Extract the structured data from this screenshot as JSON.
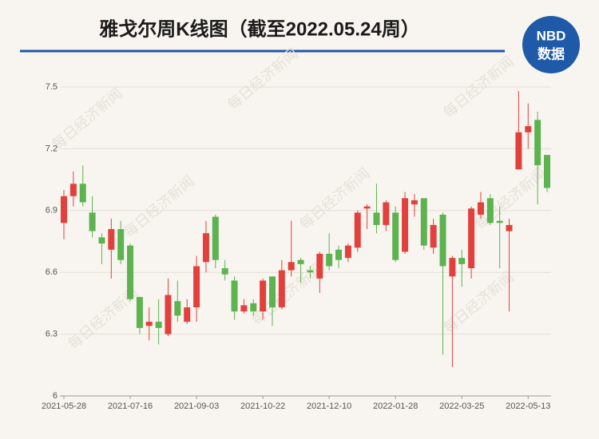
{
  "chart_data": {
    "type": "candlestick",
    "title": "雅戈尔周K线图（截至2022.05.24周）",
    "logo": {
      "top": "NBD",
      "bottom": "数据"
    },
    "watermark": "每日经济新闻",
    "categories": [
      "2021-05-28",
      null,
      null,
      null,
      null,
      null,
      null,
      "2021-07-16",
      null,
      null,
      null,
      null,
      null,
      null,
      "2021-09-03",
      null,
      null,
      null,
      null,
      null,
      null,
      "2021-10-22",
      null,
      null,
      null,
      null,
      null,
      null,
      "2021-12-10",
      null,
      null,
      null,
      null,
      null,
      null,
      "2022-01-28",
      null,
      null,
      null,
      null,
      null,
      null,
      "2022-03-25",
      null,
      null,
      null,
      null,
      null,
      null,
      "2022-05-13",
      null,
      null
    ],
    "open": [
      6.84,
      6.97,
      7.03,
      6.89,
      6.77,
      6.71,
      6.81,
      6.73,
      6.48,
      6.34,
      6.36,
      6.3,
      6.46,
      6.36,
      6.43,
      6.65,
      6.87,
      6.62,
      6.56,
      6.41,
      6.45,
      6.41,
      6.58,
      6.43,
      6.61,
      6.66,
      6.61,
      6.57,
      6.69,
      6.71,
      6.67,
      6.72,
      6.91,
      6.89,
      6.83,
      6.89,
      6.7,
      6.93,
      6.96,
      6.72,
      6.88,
      6.58,
      6.67,
      6.62,
      6.88,
      6.96,
      6.85,
      6.8,
      7.1,
      7.28,
      7.34,
      7.17
    ],
    "high": [
      7.0,
      7.09,
      7.12,
      6.97,
      6.79,
      6.86,
      6.85,
      6.74,
      6.48,
      6.43,
      6.47,
      6.57,
      6.56,
      6.47,
      6.68,
      6.85,
      6.88,
      6.66,
      6.58,
      6.47,
      6.47,
      6.57,
      6.58,
      6.66,
      6.85,
      6.67,
      6.63,
      6.7,
      6.79,
      6.73,
      6.74,
      6.9,
      6.93,
      7.03,
      6.95,
      6.92,
      6.99,
      6.98,
      6.96,
      6.86,
      6.89,
      6.68,
      6.71,
      6.92,
      6.99,
      6.98,
      6.92,
      6.86,
      7.48,
      7.42,
      7.38,
      7.17
    ],
    "low": [
      6.76,
      6.92,
      6.92,
      6.77,
      6.64,
      6.57,
      6.64,
      6.46,
      6.3,
      6.27,
      6.25,
      6.29,
      6.36,
      6.35,
      6.36,
      6.6,
      6.62,
      6.56,
      6.37,
      6.4,
      6.39,
      6.37,
      6.34,
      6.42,
      6.58,
      6.55,
      6.57,
      6.5,
      6.61,
      6.62,
      6.65,
      6.7,
      6.81,
      6.79,
      6.8,
      6.65,
      6.69,
      6.87,
      6.71,
      6.69,
      6.2,
      6.14,
      6.53,
      6.57,
      6.86,
      6.83,
      6.62,
      6.41,
      7.1,
      7.2,
      6.93,
      6.99
    ],
    "close": [
      6.97,
      7.03,
      6.94,
      6.8,
      6.74,
      6.81,
      6.66,
      6.47,
      6.33,
      6.36,
      6.33,
      6.49,
      6.39,
      6.43,
      6.63,
      6.79,
      6.66,
      6.59,
      6.41,
      6.44,
      6.41,
      6.56,
      6.43,
      6.61,
      6.65,
      6.64,
      6.6,
      6.69,
      6.63,
      6.66,
      6.73,
      6.89,
      6.92,
      6.83,
      6.94,
      6.66,
      6.96,
      6.95,
      6.73,
      6.83,
      6.63,
      6.67,
      6.64,
      6.91,
      6.94,
      6.84,
      6.84,
      6.83,
      7.28,
      7.31,
      7.12,
      7.01
    ],
    "up_color": "#e2403c",
    "down_color": "#5cb34f",
    "ylim": [
      6,
      7.5
    ],
    "yticks": [
      6,
      6.3,
      6.6,
      6.9,
      7.2,
      7.5
    ],
    "grid": true
  }
}
